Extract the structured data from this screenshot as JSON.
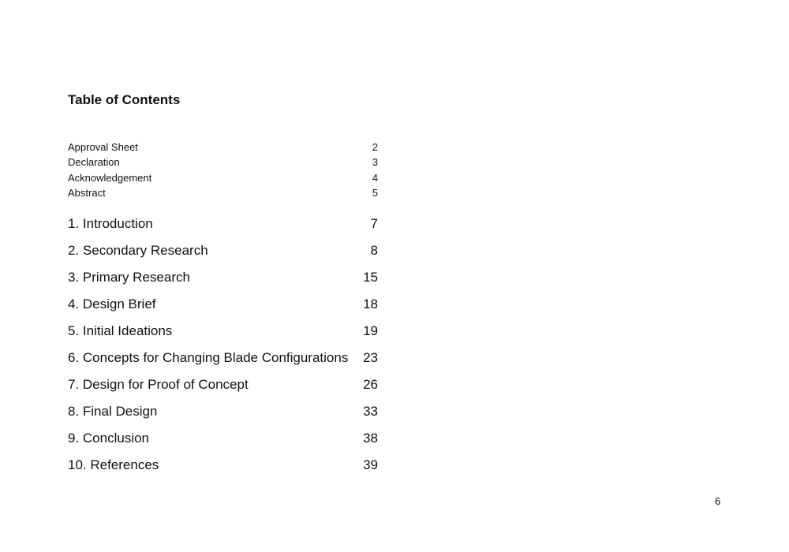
{
  "title": "Table of Contents",
  "front_matter": [
    {
      "label": "Approval Sheet",
      "page": "2"
    },
    {
      "label": "Declaration",
      "page": "3"
    },
    {
      "label": "Acknowledgement",
      "page": "4"
    },
    {
      "label": "Abstract",
      "page": "5"
    }
  ],
  "chapters": [
    {
      "label": "1. Introduction",
      "page": "7"
    },
    {
      "label": "2. Secondary Research",
      "page": "8"
    },
    {
      "label": "3. Primary Research",
      "page": "15"
    },
    {
      "label": "4. Design Brief",
      "page": "18"
    },
    {
      "label": "5. Initial Ideations",
      "page": "19"
    },
    {
      "label": "6. Concepts for Changing Blade Configurations",
      "page": "23"
    },
    {
      "label": "7. Design for Proof of Concept",
      "page": "26"
    },
    {
      "label": "8. Final Design",
      "page": "33"
    },
    {
      "label": "9. Conclusion",
      "page": "38"
    },
    {
      "label": "10. References",
      "page": "39"
    }
  ],
  "page_number": "6"
}
